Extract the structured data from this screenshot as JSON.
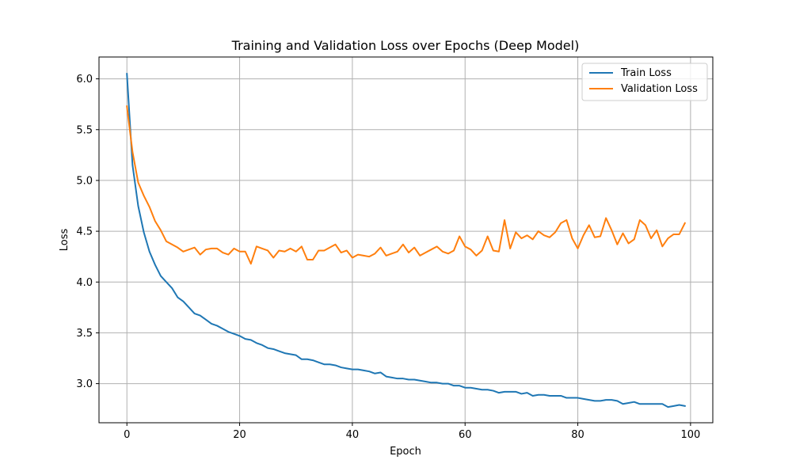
{
  "chart_data": {
    "type": "line",
    "title": "Training and Validation Loss over Epochs (Deep Model)",
    "xlabel": "Epoch",
    "ylabel": "Loss",
    "xlim": [
      -4.95,
      103.95
    ],
    "ylim": [
      2.615,
      6.215
    ],
    "xticks": [
      0,
      20,
      40,
      60,
      80,
      100
    ],
    "yticks": [
      3.0,
      3.5,
      4.0,
      4.5,
      5.0,
      5.5,
      6.0
    ],
    "grid": true,
    "legend_position": "top-right",
    "x": [
      0,
      1,
      2,
      3,
      4,
      5,
      6,
      7,
      8,
      9,
      10,
      11,
      12,
      13,
      14,
      15,
      16,
      17,
      18,
      19,
      20,
      21,
      22,
      23,
      24,
      25,
      26,
      27,
      28,
      29,
      30,
      31,
      32,
      33,
      34,
      35,
      36,
      37,
      38,
      39,
      40,
      41,
      42,
      43,
      44,
      45,
      46,
      47,
      48,
      49,
      50,
      51,
      52,
      53,
      54,
      55,
      56,
      57,
      58,
      59,
      60,
      61,
      62,
      63,
      64,
      65,
      66,
      67,
      68,
      69,
      70,
      71,
      72,
      73,
      74,
      75,
      76,
      77,
      78,
      79,
      80,
      81,
      82,
      83,
      84,
      85,
      86,
      87,
      88,
      89,
      90,
      91,
      92,
      93,
      94,
      95,
      96,
      97,
      98,
      99
    ],
    "series": [
      {
        "name": "Train Loss",
        "color": "#1f77b4",
        "values": [
          6.05,
          5.15,
          4.75,
          4.49,
          4.3,
          4.17,
          4.06,
          4.0,
          3.94,
          3.85,
          3.81,
          3.75,
          3.69,
          3.67,
          3.63,
          3.59,
          3.57,
          3.54,
          3.51,
          3.49,
          3.47,
          3.44,
          3.43,
          3.4,
          3.38,
          3.35,
          3.34,
          3.32,
          3.3,
          3.29,
          3.28,
          3.24,
          3.24,
          3.23,
          3.21,
          3.19,
          3.19,
          3.18,
          3.16,
          3.15,
          3.14,
          3.14,
          3.13,
          3.12,
          3.1,
          3.11,
          3.07,
          3.06,
          3.05,
          3.05,
          3.04,
          3.04,
          3.03,
          3.02,
          3.01,
          3.01,
          3.0,
          3.0,
          2.98,
          2.98,
          2.96,
          2.96,
          2.95,
          2.94,
          2.94,
          2.93,
          2.91,
          2.92,
          2.92,
          2.92,
          2.9,
          2.91,
          2.88,
          2.89,
          2.89,
          2.88,
          2.88,
          2.88,
          2.86,
          2.86,
          2.86,
          2.85,
          2.84,
          2.83,
          2.83,
          2.84,
          2.84,
          2.83,
          2.8,
          2.81,
          2.82,
          2.8,
          2.8,
          2.8,
          2.8,
          2.8,
          2.77,
          2.78,
          2.79,
          2.78
        ]
      },
      {
        "name": "Validation Loss",
        "color": "#ff7f0e",
        "values": [
          5.73,
          5.28,
          4.98,
          4.85,
          4.74,
          4.6,
          4.51,
          4.4,
          4.37,
          4.34,
          4.3,
          4.32,
          4.34,
          4.27,
          4.32,
          4.33,
          4.33,
          4.29,
          4.27,
          4.33,
          4.3,
          4.3,
          4.18,
          4.35,
          4.33,
          4.31,
          4.24,
          4.31,
          4.3,
          4.33,
          4.3,
          4.35,
          4.22,
          4.22,
          4.31,
          4.31,
          4.34,
          4.37,
          4.29,
          4.31,
          4.24,
          4.27,
          4.26,
          4.25,
          4.28,
          4.34,
          4.26,
          4.28,
          4.3,
          4.37,
          4.29,
          4.34,
          4.26,
          4.29,
          4.32,
          4.35,
          4.3,
          4.28,
          4.31,
          4.45,
          4.35,
          4.32,
          4.26,
          4.31,
          4.45,
          4.31,
          4.3,
          4.61,
          4.33,
          4.49,
          4.43,
          4.46,
          4.42,
          4.5,
          4.46,
          4.44,
          4.49,
          4.58,
          4.61,
          4.43,
          4.33,
          4.46,
          4.56,
          4.44,
          4.45,
          4.63,
          4.51,
          4.37,
          4.48,
          4.38,
          4.42,
          4.61,
          4.56,
          4.43,
          4.51,
          4.35,
          4.43,
          4.47,
          4.47,
          4.58
        ]
      }
    ]
  }
}
